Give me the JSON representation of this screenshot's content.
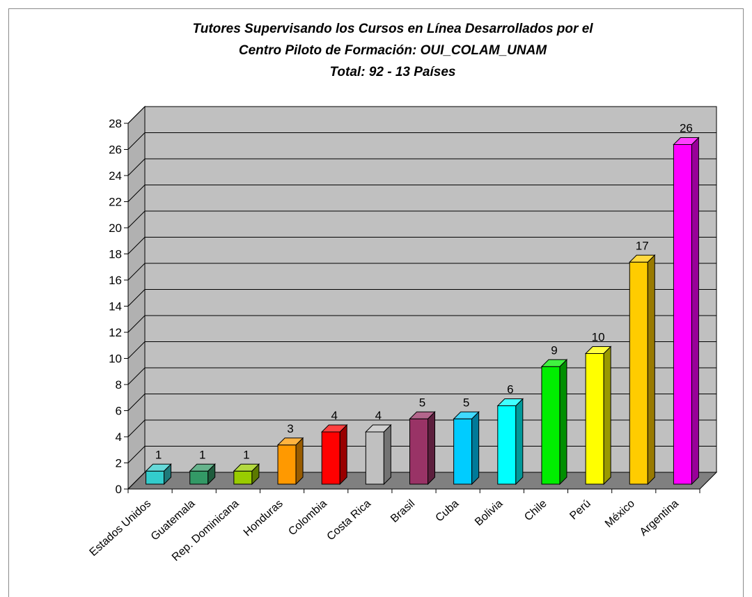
{
  "chart_data": {
    "type": "bar",
    "title_lines": [
      "Tutores Supervisando los Cursos en Línea Desarrollados por el",
      "Centro Piloto de Formación: OUI_COLAM_UNAM",
      "Total: 92 - 13 Países"
    ],
    "categories": [
      "Estados Unidos",
      "Guatemala",
      "Rep. Dominicana",
      "Honduras",
      "Colombia",
      "Costa Rica",
      "Brasil",
      "Cuba",
      "Bolivia",
      "Chile",
      "Perú",
      "México",
      "Argentina"
    ],
    "values": [
      1,
      1,
      1,
      3,
      4,
      4,
      5,
      5,
      6,
      9,
      10,
      17,
      26
    ],
    "bar_colors": [
      "#33cccc",
      "#339966",
      "#99cc00",
      "#ff9900",
      "#ff0000",
      "#c0c0c0",
      "#993366",
      "#00ccff",
      "#00ffff",
      "#00ee00",
      "#ffff00",
      "#ffcc00",
      "#ff00ff"
    ],
    "ylim": [
      0,
      28
    ],
    "ytick_step": 2,
    "grid": true,
    "xlabel": "",
    "ylabel": "",
    "wall_color": "#c0c0c0",
    "floor_color": "#808080"
  }
}
